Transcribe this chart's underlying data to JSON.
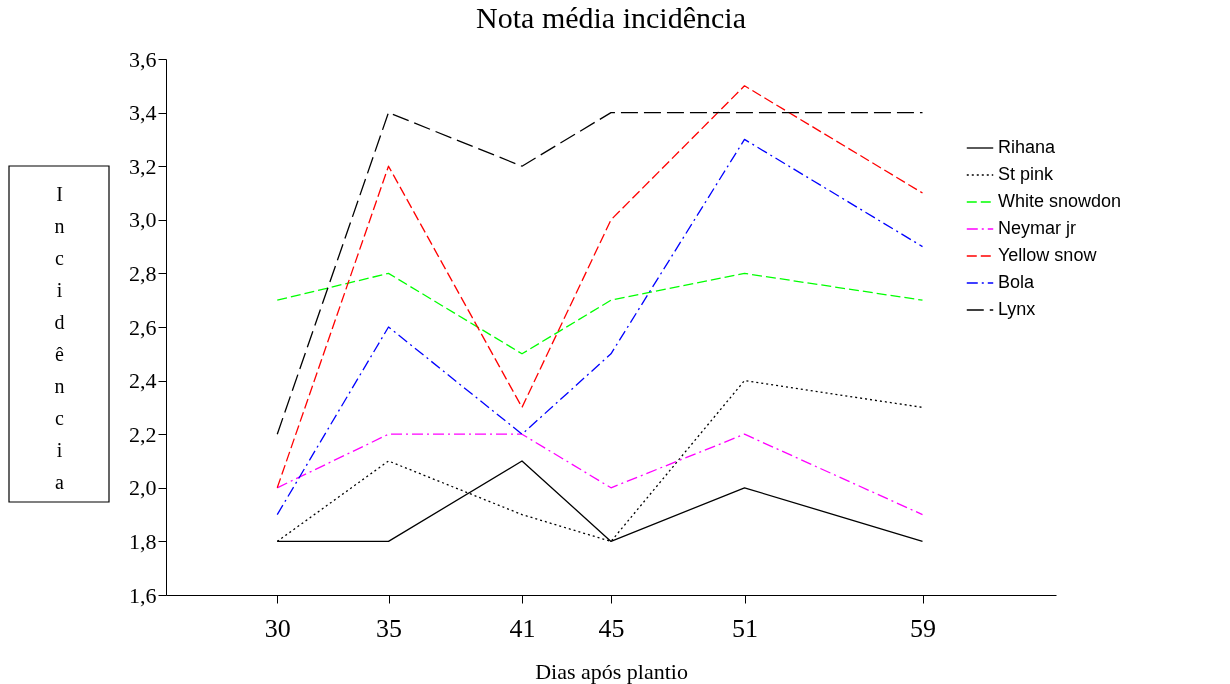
{
  "chart_data": {
    "type": "line",
    "title": "Nota média incidência",
    "xlabel": "Dias após plantio",
    "ylabel": "Incidência",
    "x": [
      30,
      35,
      41,
      45,
      51,
      59
    ],
    "xlim": [
      25,
      65
    ],
    "xticks": [
      30,
      35,
      41,
      45,
      51,
      59
    ],
    "ylim": [
      1.6,
      3.6
    ],
    "yticks": [
      {
        "value": 1.6,
        "label": "1,6"
      },
      {
        "value": 1.8,
        "label": "1,8"
      },
      {
        "value": 2.0,
        "label": "2,0"
      },
      {
        "value": 2.2,
        "label": "2,2"
      },
      {
        "value": 2.4,
        "label": "2,4"
      },
      {
        "value": 2.6,
        "label": "2,6"
      },
      {
        "value": 2.8,
        "label": "2,8"
      },
      {
        "value": 3.0,
        "label": "3,0"
      },
      {
        "value": 3.2,
        "label": "3,2"
      },
      {
        "value": 3.4,
        "label": "3,4"
      },
      {
        "value": 3.6,
        "label": "3,6"
      }
    ],
    "grid": false,
    "legend": "top right",
    "marker": "none",
    "series": [
      {
        "name": "Rihana",
        "color": "#000000",
        "line_style": "solid",
        "values": [
          1.8,
          1.8,
          2.1,
          1.8,
          2.0,
          1.8
        ]
      },
      {
        "name": "St pink",
        "color": "#000000",
        "line_style": "dotted",
        "values": [
          1.8,
          2.1,
          1.9,
          1.8,
          2.4,
          2.3
        ]
      },
      {
        "name": "White snowdon",
        "color": "#00ff00",
        "line_style": "dashed",
        "values": [
          2.7,
          2.8,
          2.5,
          2.7,
          2.8,
          2.7
        ]
      },
      {
        "name": "Neymar jr",
        "color": "#ff00ff",
        "line_style": "dashdot",
        "values": [
          2.0,
          2.2,
          2.2,
          2.0,
          2.2,
          1.9
        ]
      },
      {
        "name": "Yellow snow",
        "color": "#ff0000",
        "line_style": "dashed",
        "values": [
          2.0,
          3.2,
          2.3,
          3.0,
          3.5,
          3.1
        ]
      },
      {
        "name": "Bola",
        "color": "#0000ff",
        "line_style": "dashdot",
        "values": [
          1.9,
          2.6,
          2.2,
          2.5,
          3.3,
          2.9
        ]
      },
      {
        "name": "Lynx",
        "color": "#000000",
        "line_style": "longdash",
        "values": [
          2.2,
          3.4,
          3.2,
          3.4,
          3.4,
          3.4
        ]
      }
    ]
  }
}
